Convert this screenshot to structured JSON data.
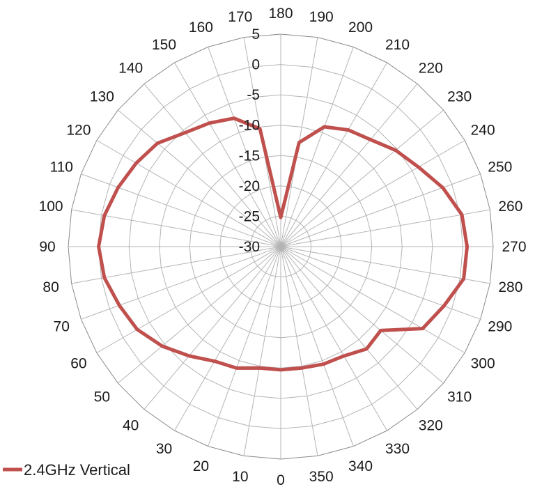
{
  "chart_data": {
    "type": "radar",
    "title": "",
    "angle_direction": "counterclockwise",
    "angle_zero_position": "bottom",
    "angles": [
      0,
      10,
      20,
      30,
      40,
      50,
      60,
      70,
      80,
      90,
      100,
      110,
      120,
      130,
      140,
      150,
      160,
      170,
      180,
      190,
      200,
      210,
      220,
      230,
      240,
      250,
      260,
      270,
      280,
      290,
      300,
      310,
      320,
      330,
      340,
      350
    ],
    "angle_labels": [
      "0",
      "10",
      "20",
      "30",
      "40",
      "50",
      "60",
      "70",
      "80",
      "90",
      "100",
      "110",
      "120",
      "130",
      "140",
      "150",
      "160",
      "170",
      "180",
      "190",
      "200",
      "210",
      "220",
      "230",
      "240",
      "250",
      "260",
      "270",
      "280",
      "290",
      "300",
      "310",
      "320",
      "330",
      "340",
      "350"
    ],
    "radial_ticks": [
      -30,
      -25,
      -20,
      -15,
      -10,
      -5,
      0,
      5
    ],
    "radial_tick_labels": [
      "-30",
      "-25",
      "-20",
      "-15",
      "-10",
      "-5",
      "0",
      "5"
    ],
    "rlim": [
      -30,
      5
    ],
    "grid": true,
    "series": [
      {
        "name": "2.4GHz Vertical",
        "color": "#c0504d",
        "values": [
          -9.7,
          -9.7,
          -8.7,
          -8.2,
          -6.5,
          -4.5,
          -2.7,
          -1.7,
          -0.5,
          0,
          -0.5,
          -1.5,
          -2.5,
          -3.5,
          -5.5,
          -6.5,
          -7.5,
          -10.3,
          -25.2,
          -12.6,
          -9.0,
          -7.8,
          -7.0,
          -5.3,
          -3.8,
          -1.6,
          0.3,
          0.7,
          0.6,
          -1.4,
          -3.0,
          -8.5,
          -8.0,
          -9.2,
          -9.4,
          -9.7
        ]
      }
    ],
    "legend": {
      "position": "bottom-left",
      "entries": [
        "2.4GHz Vertical"
      ]
    }
  }
}
